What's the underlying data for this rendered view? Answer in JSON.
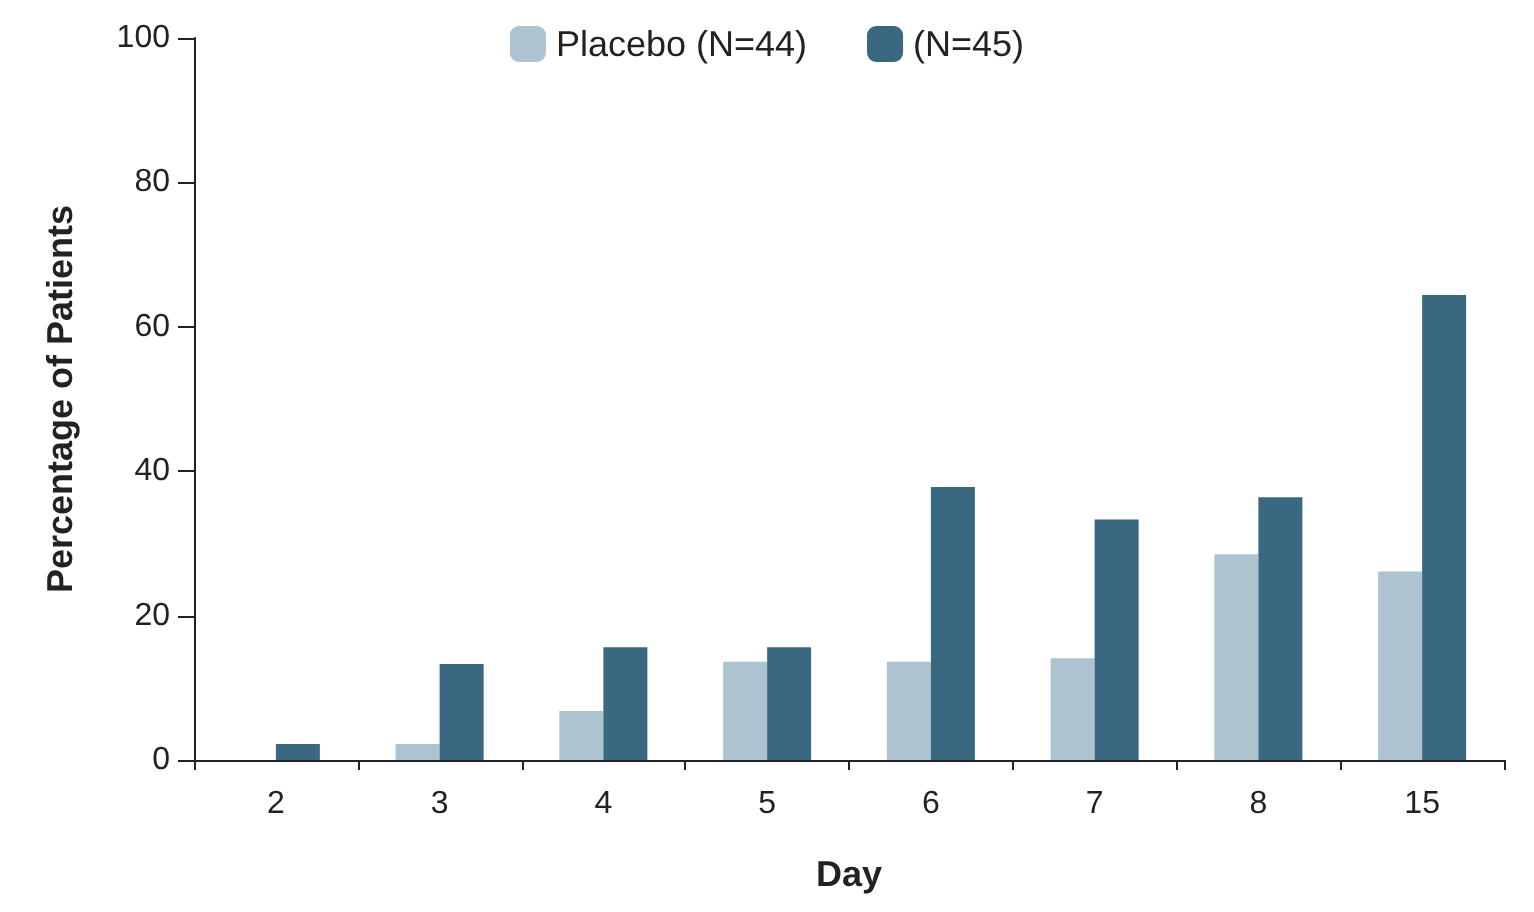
{
  "chart_data": {
    "type": "bar",
    "xlabel": "Day",
    "ylabel": "Percentage of Patients",
    "categories": [
      "2",
      "3",
      "4",
      "5",
      "6",
      "7",
      "8",
      "15"
    ],
    "series": [
      {
        "name": "Placebo (N=44)",
        "color": "#adc3cf",
        "values": [
          0,
          2.2,
          6.8,
          13.6,
          13.6,
          14.1,
          28.5,
          26.1
        ]
      },
      {
        "name": "(N=45)",
        "color": "#3a6880",
        "values": [
          2.2,
          13.3,
          15.6,
          15.6,
          37.8,
          33.3,
          36.4,
          64.4
        ]
      }
    ],
    "ylim": [
      0,
      100
    ],
    "yticks": [
      0,
      20,
      40,
      60,
      80,
      100
    ],
    "grid": false,
    "legend": "top"
  }
}
